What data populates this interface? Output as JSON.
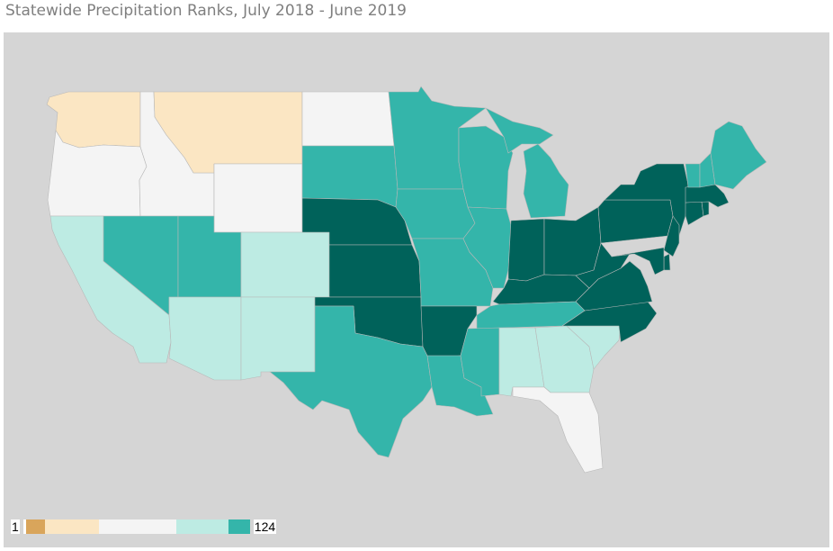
{
  "title": "Statewide Precipitation Ranks, July 2018 - June 2019",
  "legend": {
    "min_label": "1",
    "max_label": "124",
    "bins": [
      {
        "color": "#ffffff"
      },
      {
        "color": "#d9a55b"
      },
      {
        "color": "#fbe6c3"
      },
      {
        "color": "#f4f4f4"
      },
      {
        "color": "#bdebe3"
      },
      {
        "color": "#34b5aa"
      }
    ]
  },
  "colors": {
    "background": "#d5d5d5",
    "border": "#b8b8b8",
    "below_normal": "#fbe6c3",
    "near_normal": "#f4f4f4",
    "above_normal": "#bdebe3",
    "much_above_normal": "#34b5aa",
    "record_wettest": "#00625a"
  },
  "states": [
    {
      "id": "WA",
      "category": "below_normal"
    },
    {
      "id": "OR",
      "category": "near_normal"
    },
    {
      "id": "CA",
      "category": "above_normal"
    },
    {
      "id": "ID",
      "category": "near_normal"
    },
    {
      "id": "NV",
      "category": "much_above_normal"
    },
    {
      "id": "MT",
      "category": "below_normal"
    },
    {
      "id": "WY",
      "category": "near_normal"
    },
    {
      "id": "UT",
      "category": "much_above_normal"
    },
    {
      "id": "AZ",
      "category": "above_normal"
    },
    {
      "id": "CO",
      "category": "above_normal"
    },
    {
      "id": "NM",
      "category": "above_normal"
    },
    {
      "id": "ND",
      "category": "near_normal"
    },
    {
      "id": "SD",
      "category": "much_above_normal"
    },
    {
      "id": "NE",
      "category": "record_wettest"
    },
    {
      "id": "KS",
      "category": "record_wettest"
    },
    {
      "id": "OK",
      "category": "record_wettest"
    },
    {
      "id": "TX",
      "category": "much_above_normal"
    },
    {
      "id": "MN",
      "category": "much_above_normal"
    },
    {
      "id": "IA",
      "category": "much_above_normal"
    },
    {
      "id": "MO",
      "category": "much_above_normal"
    },
    {
      "id": "AR",
      "category": "record_wettest"
    },
    {
      "id": "LA",
      "category": "much_above_normal"
    },
    {
      "id": "WI",
      "category": "much_above_normal"
    },
    {
      "id": "IL",
      "category": "much_above_normal"
    },
    {
      "id": "MI",
      "category": "much_above_normal"
    },
    {
      "id": "IN",
      "category": "record_wettest"
    },
    {
      "id": "OH",
      "category": "record_wettest"
    },
    {
      "id": "KY",
      "category": "record_wettest"
    },
    {
      "id": "TN",
      "category": "much_above_normal"
    },
    {
      "id": "MS",
      "category": "much_above_normal"
    },
    {
      "id": "AL",
      "category": "above_normal"
    },
    {
      "id": "GA",
      "category": "above_normal"
    },
    {
      "id": "FL",
      "category": "near_normal"
    },
    {
      "id": "SC",
      "category": "above_normal"
    },
    {
      "id": "NC",
      "category": "record_wettest"
    },
    {
      "id": "VA",
      "category": "record_wettest"
    },
    {
      "id": "WV",
      "category": "record_wettest"
    },
    {
      "id": "PA",
      "category": "record_wettest"
    },
    {
      "id": "NY",
      "category": "record_wettest"
    },
    {
      "id": "NJ",
      "category": "record_wettest"
    },
    {
      "id": "DE",
      "category": "record_wettest"
    },
    {
      "id": "MD",
      "category": "record_wettest"
    },
    {
      "id": "CT",
      "category": "record_wettest"
    },
    {
      "id": "RI",
      "category": "record_wettest"
    },
    {
      "id": "MA",
      "category": "record_wettest"
    },
    {
      "id": "VT",
      "category": "much_above_normal"
    },
    {
      "id": "NH",
      "category": "much_above_normal"
    },
    {
      "id": "ME",
      "category": "much_above_normal"
    }
  ]
}
